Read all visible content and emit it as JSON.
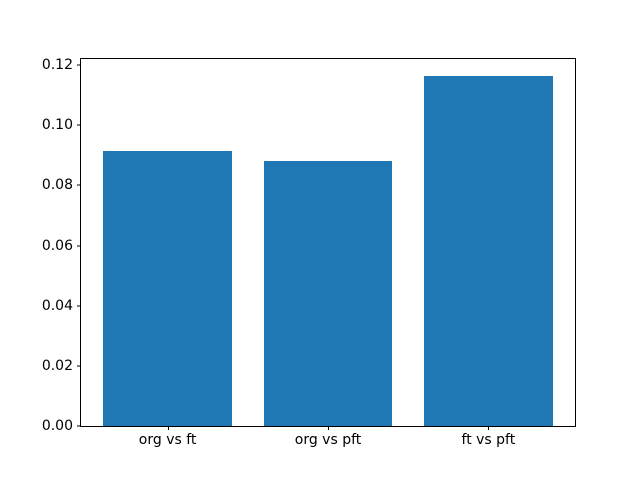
{
  "chart_data": {
    "type": "bar",
    "categories": [
      "org vs ft",
      "org vs pft",
      "ft vs pft"
    ],
    "values": [
      0.0915,
      0.088,
      0.1162
    ],
    "title": "",
    "xlabel": "",
    "ylabel": "",
    "yticks": [
      0.0,
      0.02,
      0.04,
      0.06,
      0.08,
      0.1,
      0.12
    ],
    "ytick_labels": [
      "0.00",
      "0.02",
      "0.04",
      "0.06",
      "0.08",
      "0.10",
      "0.12"
    ],
    "ylim": [
      0,
      0.122
    ],
    "xlim": [
      -0.54,
      2.54
    ],
    "bar_width": 0.8,
    "bar_color": "#1f77b4",
    "grid": false,
    "legend": null
  }
}
